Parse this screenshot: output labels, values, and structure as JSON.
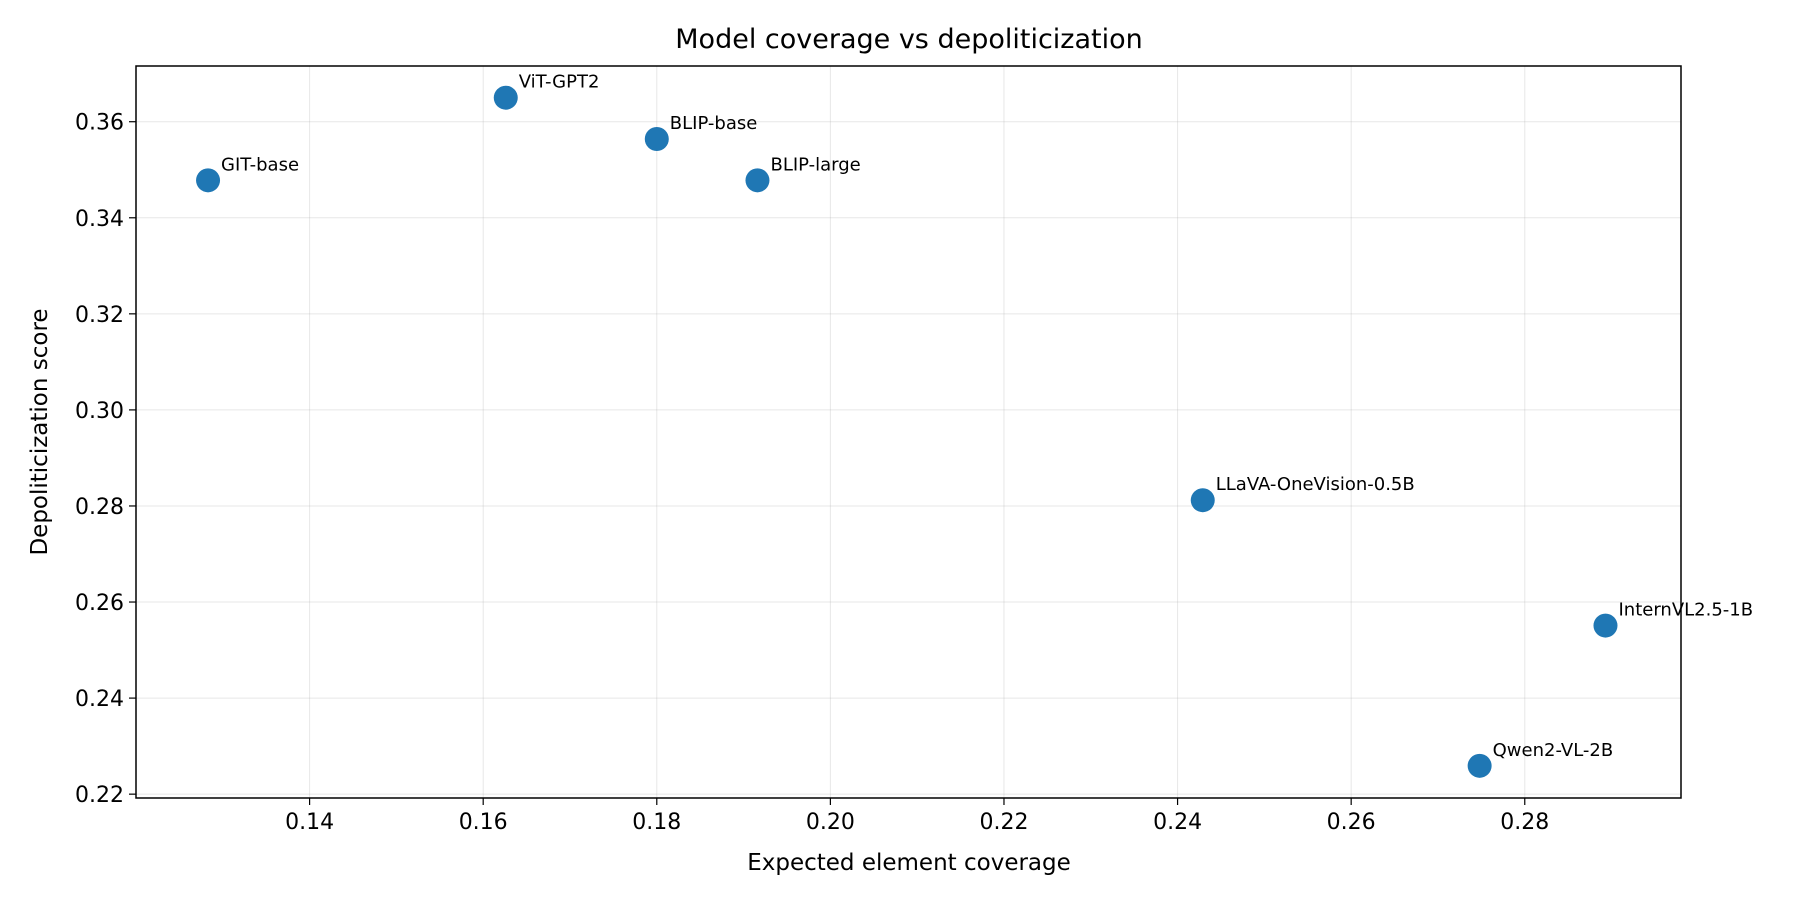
{
  "chart_data": {
    "type": "scatter",
    "title": "Model coverage vs depoliticization",
    "xlabel": "Expected element coverage",
    "ylabel": "Depoliticization score",
    "xlim": [
      0.12,
      0.298
    ],
    "ylim": [
      0.2192,
      0.3716
    ],
    "xticks": [
      0.14,
      0.16,
      0.18,
      0.2,
      0.22,
      0.24,
      0.26,
      0.28
    ],
    "xtick_labels": [
      "0.14",
      "0.16",
      "0.18",
      "0.20",
      "0.22",
      "0.24",
      "0.26",
      "0.28"
    ],
    "yticks": [
      0.22,
      0.24,
      0.26,
      0.28,
      0.3,
      0.32,
      0.34,
      0.36
    ],
    "ytick_labels": [
      "0.22",
      "0.24",
      "0.26",
      "0.28",
      "0.30",
      "0.32",
      "0.34",
      "0.36"
    ],
    "grid": true,
    "marker_color": "#1f77b4",
    "points": [
      {
        "label": "GIT-base",
        "x": 0.1283,
        "y": 0.3478
      },
      {
        "label": "ViT-GPT2",
        "x": 0.1626,
        "y": 0.365
      },
      {
        "label": "BLIP-base",
        "x": 0.18,
        "y": 0.3564
      },
      {
        "label": "BLIP-large",
        "x": 0.1916,
        "y": 0.3478
      },
      {
        "label": "LLaVA-OneVision-0.5B",
        "x": 0.2429,
        "y": 0.2812
      },
      {
        "label": "InternVL2.5-1B",
        "x": 0.2893,
        "y": 0.2551
      },
      {
        "label": "Qwen2-VL-2B",
        "x": 0.2748,
        "y": 0.2259
      }
    ]
  }
}
